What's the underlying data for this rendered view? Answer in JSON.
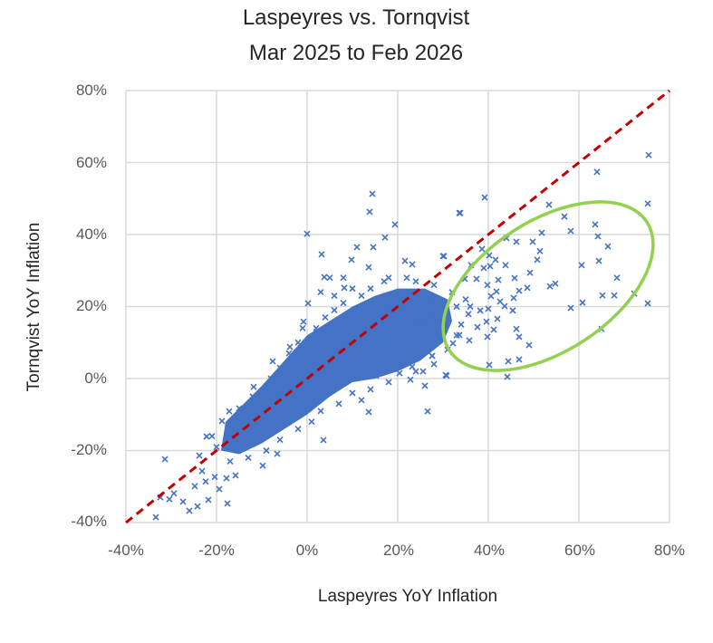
{
  "chart_data": {
    "type": "scatter",
    "title": "Laspeyres vs. Tornqvist",
    "subtitle": "Mar 2025 to Feb 2026",
    "xlabel": "Laspeyres YoY Inflation",
    "ylabel": "Tornqvist YoY Inflation",
    "xlim": [
      -40,
      80
    ],
    "ylim": [
      -40,
      80
    ],
    "x_ticks": [
      "-40%",
      "-20%",
      "0%",
      "20%",
      "40%",
      "60%",
      "80%"
    ],
    "y_ticks": [
      "80%",
      "60%",
      "40%",
      "20%",
      "0%",
      "-20%",
      "-40%"
    ],
    "grid": true,
    "marker_color": "#4472C4",
    "reference_line": {
      "name": "45-degree line (y = x)",
      "from": [
        -40,
        -40
      ],
      "to": [
        80,
        80
      ],
      "color": "#C00000",
      "style": "dashed"
    },
    "highlight": {
      "shape": "ellipse",
      "color": "#92D050",
      "region": "Laspeyres 30%-78%, Tornqvist 0%-50%"
    },
    "dense_core_outline": [
      [
        -18,
        -12
      ],
      [
        -14,
        -7
      ],
      [
        -10,
        -2
      ],
      [
        -5,
        5
      ],
      [
        0,
        12
      ],
      [
        5,
        16
      ],
      [
        10,
        20
      ],
      [
        15,
        23
      ],
      [
        20,
        25
      ],
      [
        26,
        25
      ],
      [
        31,
        22
      ],
      [
        32,
        16
      ],
      [
        30,
        10
      ],
      [
        25,
        5
      ],
      [
        20,
        2
      ],
      [
        15,
        0
      ],
      [
        10,
        -1
      ],
      [
        5,
        -5
      ],
      [
        0,
        -10
      ],
      [
        -5,
        -14
      ],
      [
        -10,
        -18
      ],
      [
        -15,
        -21
      ],
      [
        -19,
        -20
      ]
    ],
    "points": [
      [
        75.4,
        62.1
      ],
      [
        64,
        57.4
      ],
      [
        39.2,
        50.3
      ],
      [
        33.8,
        46
      ],
      [
        75.2,
        48.6
      ],
      [
        53.4,
        48.3
      ],
      [
        56.8,
        45
      ],
      [
        63.6,
        42.8
      ],
      [
        58.2,
        41
      ],
      [
        51.8,
        40.5
      ],
      [
        64.2,
        39.5
      ],
      [
        44,
        39
      ],
      [
        46.2,
        38
      ],
      [
        49.8,
        38
      ],
      [
        66.4,
        36.7
      ],
      [
        51.4,
        35.4
      ],
      [
        50.8,
        33
      ],
      [
        43.8,
        31.5
      ],
      [
        60.6,
        31.5
      ],
      [
        64.4,
        32.7
      ],
      [
        49.2,
        29.4
      ],
      [
        68.4,
        28
      ],
      [
        45.8,
        27.9
      ],
      [
        42.2,
        27.4
      ],
      [
        54.8,
        26.4
      ],
      [
        53.6,
        25.6
      ],
      [
        48.6,
        25.2
      ],
      [
        46.8,
        24.4
      ],
      [
        65.2,
        23.1
      ],
      [
        67.8,
        23.1
      ],
      [
        72.2,
        23.6
      ],
      [
        45.6,
        22.4
      ],
      [
        75.2,
        20.9
      ],
      [
        60.8,
        21.1
      ],
      [
        58.2,
        19.6
      ],
      [
        45.4,
        18.9
      ],
      [
        65,
        13.8
      ],
      [
        46.2,
        13.8
      ],
      [
        46.8,
        11.6
      ],
      [
        49,
        9.3
      ],
      [
        40.2,
        3.8
      ],
      [
        44.4,
        4.8
      ],
      [
        46.8,
        5.3
      ],
      [
        44.2,
        0.5
      ],
      [
        30.6,
        1
      ],
      [
        40.2,
        34.2
      ],
      [
        41.6,
        33
      ],
      [
        36.2,
        31.5
      ],
      [
        39,
        30.7
      ],
      [
        40.4,
        31.2
      ],
      [
        34.8,
        27.7
      ],
      [
        37.4,
        27.7
      ],
      [
        39.8,
        26
      ],
      [
        41.8,
        24.2
      ],
      [
        40.6,
        22.9
      ],
      [
        42.6,
        21.4
      ],
      [
        40,
        19.4
      ],
      [
        38.2,
        18.9
      ],
      [
        35.6,
        17.9
      ],
      [
        43.6,
        20.1
      ],
      [
        42,
        16.6
      ],
      [
        39.6,
        15.8
      ],
      [
        37.6,
        14.3
      ],
      [
        41.2,
        13.6
      ],
      [
        39.8,
        11.6
      ],
      [
        35.8,
        10.6
      ],
      [
        33.6,
        12.1
      ],
      [
        32.2,
        9.8
      ],
      [
        27.6,
        6.3
      ],
      [
        38.6,
        36
      ],
      [
        30.2,
        34
      ],
      [
        14.4,
        51.3
      ],
      [
        13.8,
        46.3
      ],
      [
        0,
        40.2
      ],
      [
        19.4,
        42.8
      ],
      [
        17.2,
        39.2
      ],
      [
        3.2,
        34.5
      ],
      [
        11,
        36.5
      ],
      [
        14.6,
        36.5
      ],
      [
        9.8,
        33
      ],
      [
        33.6,
        46
      ],
      [
        13.6,
        -9.3
      ],
      [
        26.6,
        -9.1
      ],
      [
        3.6,
        -17.1
      ],
      [
        -31.4,
        -22.4
      ],
      [
        -33.4,
        -38.5
      ],
      [
        -26,
        -36.7
      ],
      [
        -24.2,
        -35.5
      ],
      [
        -27.4,
        -34.2
      ],
      [
        -30.4,
        -33.5
      ],
      [
        -32.4,
        -33
      ],
      [
        -29.4,
        -31.9
      ],
      [
        -21.8,
        -33.7
      ],
      [
        -17.6,
        -34.7
      ],
      [
        -19.4,
        -30.7
      ],
      [
        -24.8,
        -29.9
      ],
      [
        -22.4,
        -28.6
      ],
      [
        -20.4,
        -27.3
      ],
      [
        -23.2,
        -25.7
      ],
      [
        -17.8,
        -27.7
      ],
      [
        -15.8,
        -26.9
      ],
      [
        -23.8,
        -21.4
      ],
      [
        -22.2,
        -16.1
      ],
      [
        -18.8,
        -11.8
      ],
      [
        -17.2,
        -9.1
      ],
      [
        -15,
        -8.3
      ],
      [
        -9.8,
        -24.2
      ],
      [
        -6.6,
        -20.9
      ],
      [
        -11.8,
        -2.3
      ],
      [
        -3.8,
        8.8
      ],
      [
        -7.6,
        4.8
      ],
      [
        -0.8,
        15.8
      ],
      [
        0.2,
        20.9
      ],
      [
        3.8,
        28.2
      ],
      [
        8.2,
        25.2
      ],
      [
        13.6,
        30.9
      ],
      [
        21.6,
        32.7
      ],
      [
        23.2,
        31.7
      ],
      [
        30,
        34
      ],
      [
        25.6,
        2
      ],
      [
        22.8,
        -0.3
      ],
      [
        20.4,
        1.5
      ],
      [
        30.8,
        0.8
      ],
      [
        23.2,
        3.3
      ],
      [
        15.2,
        0.8
      ],
      [
        27.6,
        6.3
      ],
      [
        -16,
        -14
      ],
      [
        -14,
        -10
      ],
      [
        -12,
        -5
      ],
      [
        -8,
        0
      ],
      [
        -6,
        3
      ],
      [
        -4,
        7
      ],
      [
        -2,
        10
      ],
      [
        2,
        14
      ],
      [
        4,
        17
      ],
      [
        6,
        19
      ],
      [
        8,
        21
      ],
      [
        12,
        23
      ],
      [
        14,
        25
      ],
      [
        17,
        27
      ],
      [
        22,
        28
      ],
      [
        24,
        27
      ],
      [
        28,
        26
      ],
      [
        33,
        20
      ],
      [
        34,
        15
      ],
      [
        33,
        12
      ],
      [
        31,
        8
      ],
      [
        28,
        4
      ],
      [
        24,
        2
      ],
      [
        18,
        -1
      ],
      [
        14,
        -3
      ],
      [
        10,
        -4
      ],
      [
        7,
        -7
      ],
      [
        3,
        -9
      ],
      [
        1,
        -12
      ],
      [
        -2,
        -14
      ],
      [
        -6,
        -17
      ],
      [
        -9,
        -20
      ],
      [
        -13,
        -22
      ],
      [
        -17,
        -23
      ],
      [
        -20,
        -19
      ],
      [
        -21,
        -16
      ],
      [
        10,
        25
      ],
      [
        6,
        23
      ],
      [
        18,
        28
      ],
      [
        -1,
        14
      ],
      [
        -10,
        -8
      ],
      [
        12,
        -6
      ],
      [
        26,
        -2
      ],
      [
        20,
        6
      ],
      [
        3,
        24
      ],
      [
        5,
        28
      ],
      [
        8,
        28
      ],
      [
        -2,
        -3
      ],
      [
        -12,
        -14
      ],
      [
        -8,
        -12
      ],
      [
        16,
        10
      ],
      [
        20,
        14
      ],
      [
        25,
        16
      ],
      [
        28,
        18
      ],
      [
        29,
        13
      ],
      [
        27,
        22
      ],
      [
        32,
        24
      ],
      [
        35,
        22
      ],
      [
        36,
        20
      ]
    ]
  }
}
